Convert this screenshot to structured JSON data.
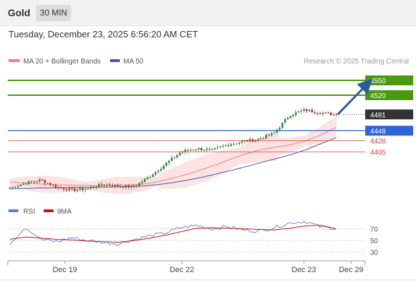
{
  "header": {
    "symbol": "Gold",
    "timeframe": "30 MIN",
    "datetime": "Tuesday, December 23, 2025 6:56:20 AM CET"
  },
  "legend": {
    "ma20_bb": "MA 20 + Bollinger Bands",
    "ma50": "MA 50",
    "credit": "Research © 2025 Trading Central"
  },
  "rsi_legend": {
    "rsi": "RSI",
    "ma": "9MA"
  },
  "colors": {
    "ma20": "#f08080",
    "bands_fill": "#fde3e3",
    "ma50": "#3a5aa8",
    "candle_up": "#2f8a3a",
    "candle_down": "#c62828",
    "resistance": "#4a9a0e",
    "pivot": "#2f63d6",
    "support": "#e23c3c",
    "current": "#333333",
    "arrow": "#2c5aa0",
    "rsi": "#5a7be0",
    "rsi_ma": "#d01010"
  },
  "chart_data": [
    {
      "type": "candlestick",
      "title": "Gold",
      "timeframe": "30 MIN",
      "x_ticks": [
        "Dec 19",
        "Dec 22",
        "Dec 23",
        "Dec 29"
      ],
      "ylim": [
        4310,
        4570
      ],
      "levels": [
        {
          "value": 4550,
          "label": "4550",
          "kind": "resistance"
        },
        {
          "value": 4520,
          "label": "4520",
          "kind": "resistance"
        },
        {
          "value": 4481,
          "label": "4481",
          "kind": "current"
        },
        {
          "value": 4448,
          "label": "4448",
          "kind": "pivot"
        },
        {
          "value": 4428,
          "label": "4428",
          "kind": "support"
        },
        {
          "value": 4405,
          "label": "4405",
          "kind": "support"
        }
      ],
      "forecast": {
        "from": 4481,
        "to": 4550
      },
      "series": [
        {
          "name": "MA 20 + Bollinger Bands",
          "type": "line",
          "values": [
            4344,
            4342,
            4340,
            4339,
            4338,
            4337,
            4336,
            4337,
            4338,
            4340,
            4345,
            4352,
            4360,
            4370,
            4380,
            4392,
            4402,
            4410,
            4415,
            4420,
            4428,
            4440,
            4455
          ]
        },
        {
          "name": "MA 50",
          "type": "line",
          "values": [
            4330,
            4331,
            4332,
            4332,
            4333,
            4333,
            4334,
            4334,
            4335,
            4336,
            4339,
            4343,
            4348,
            4354,
            4361,
            4368,
            4376,
            4384,
            4392,
            4400,
            4410,
            4422,
            4434
          ]
        }
      ],
      "price_anchors": [
        4332,
        4342,
        4348,
        4334,
        4328,
        4330,
        4340,
        4336,
        4334,
        4356,
        4380,
        4405,
        4412,
        4408,
        4420,
        4426,
        4431,
        4443,
        4480,
        4490,
        4484,
        4481
      ]
    },
    {
      "type": "line",
      "title": "RSI",
      "yticks": [
        70,
        50,
        30
      ],
      "ylim": [
        20,
        90
      ],
      "series": [
        {
          "name": "RSI",
          "values": [
            45,
            73,
            52,
            48,
            55,
            50,
            47,
            44,
            52,
            58,
            63,
            72,
            76,
            70,
            74,
            68,
            66,
            72,
            80,
            83,
            73,
            71
          ]
        },
        {
          "name": "9MA",
          "values": [
            52,
            56,
            54,
            52,
            51,
            49,
            48,
            47,
            50,
            54,
            59,
            65,
            71,
            72,
            71,
            70,
            69,
            68,
            71,
            75,
            76,
            70
          ]
        }
      ]
    }
  ]
}
